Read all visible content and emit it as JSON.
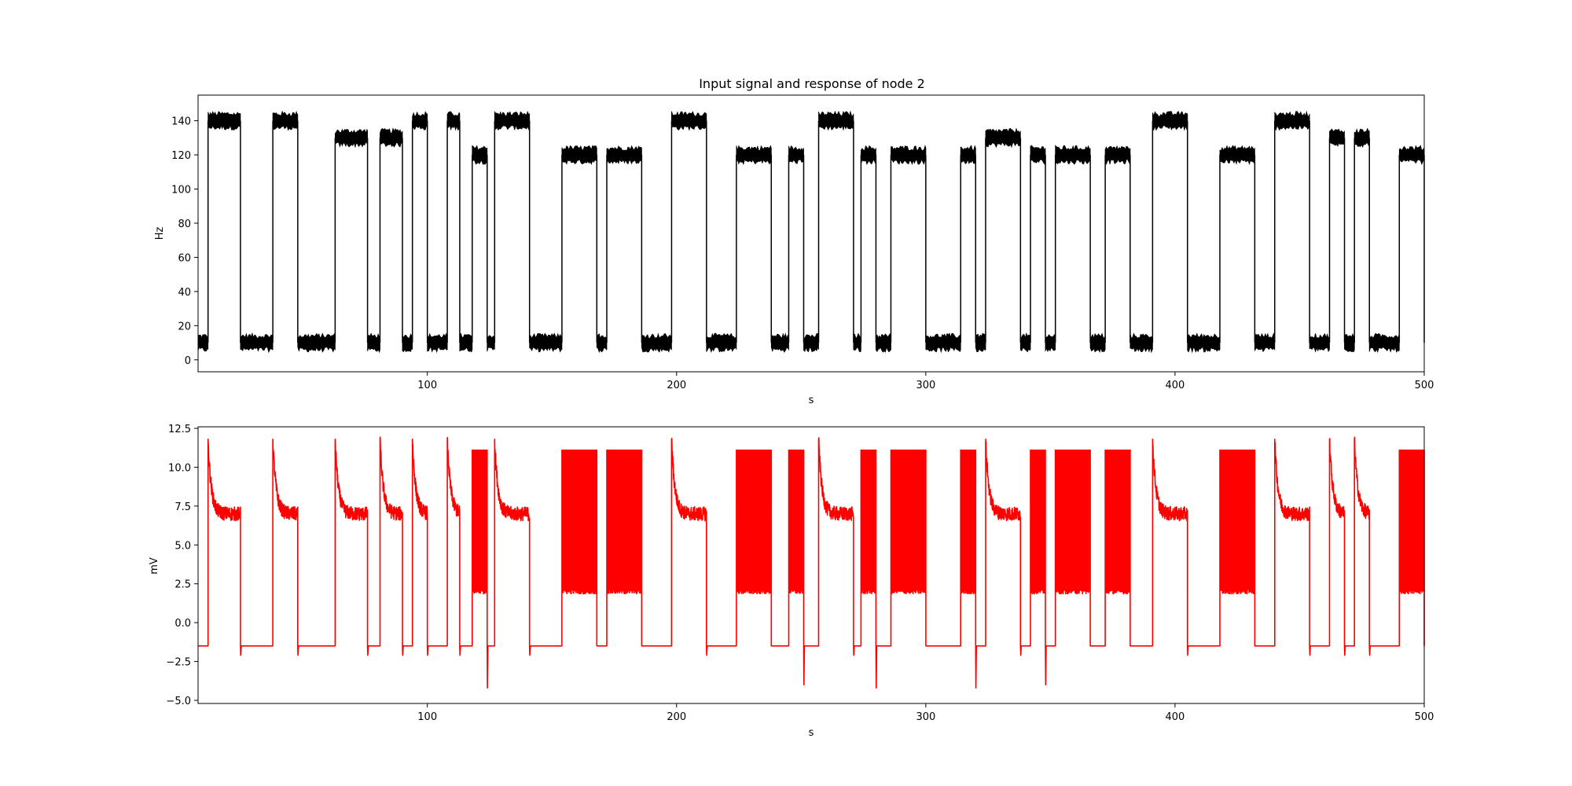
{
  "chart_data": [
    {
      "type": "line",
      "title": "Input signal and response of node 2",
      "xlabel": "s",
      "ylabel": "Hz",
      "xlim": [
        8,
        500
      ],
      "ylim": [
        -7,
        155
      ],
      "xticks": [
        100,
        200,
        300,
        400,
        500
      ],
      "yticks": [
        0,
        20,
        40,
        60,
        80,
        100,
        120,
        140
      ],
      "grid": false,
      "color": "#000000",
      "noise_amplitude": 4,
      "low_level": 10,
      "series": [
        {
          "high_segments": [
            {
              "start": 12,
              "end": 25,
              "level": 140
            },
            {
              "start": 38,
              "end": 48,
              "level": 140
            },
            {
              "start": 63,
              "end": 76,
              "level": 130
            },
            {
              "start": 81,
              "end": 90,
              "level": 130
            },
            {
              "start": 94,
              "end": 100,
              "level": 140
            },
            {
              "start": 108,
              "end": 113,
              "level": 140
            },
            {
              "start": 118,
              "end": 124,
              "level": 120
            },
            {
              "start": 127,
              "end": 141,
              "level": 140
            },
            {
              "start": 154,
              "end": 168,
              "level": 120
            },
            {
              "start": 172,
              "end": 186,
              "level": 120
            },
            {
              "start": 198,
              "end": 212,
              "level": 140
            },
            {
              "start": 224,
              "end": 238,
              "level": 120
            },
            {
              "start": 245,
              "end": 251,
              "level": 120
            },
            {
              "start": 257,
              "end": 271,
              "level": 140
            },
            {
              "start": 274,
              "end": 280,
              "level": 120
            },
            {
              "start": 286,
              "end": 300,
              "level": 120
            },
            {
              "start": 314,
              "end": 320,
              "level": 120
            },
            {
              "start": 324,
              "end": 338,
              "level": 130
            },
            {
              "start": 342,
              "end": 348,
              "level": 120
            },
            {
              "start": 352,
              "end": 366,
              "level": 120
            },
            {
              "start": 372,
              "end": 382,
              "level": 120
            },
            {
              "start": 391,
              "end": 405,
              "level": 140
            },
            {
              "start": 418,
              "end": 432,
              "level": 120
            },
            {
              "start": 440,
              "end": 454,
              "level": 140
            },
            {
              "start": 462,
              "end": 468,
              "level": 130
            },
            {
              "start": 472,
              "end": 478,
              "level": 130
            },
            {
              "start": 490,
              "end": 500,
              "level": 120
            }
          ]
        }
      ]
    },
    {
      "type": "line",
      "title": "",
      "xlabel": "s",
      "ylabel": "mV",
      "xlim": [
        8,
        500
      ],
      "ylim": [
        -5.2,
        12.6
      ],
      "xticks": [
        100,
        200,
        300,
        400,
        500
      ],
      "yticks": [
        -5.0,
        -2.5,
        0.0,
        2.5,
        5.0,
        7.5,
        10.0,
        12.5
      ],
      "ytick_labels": [
        "−5.0",
        "−2.5",
        "0.0",
        "2.5",
        "5.0",
        "7.5",
        "10.0",
        "12.5"
      ],
      "grid": false,
      "color": "#ff0000",
      "baseline": -1.5,
      "spike_peak": 11.8,
      "settle_level": 7.0,
      "burst_top": 11.1,
      "burst_bottom": 2.0,
      "series": [
        {
          "segments": [
            {
              "start": 12,
              "end": 25,
              "mode": "settle"
            },
            {
              "start": 38,
              "end": 48,
              "mode": "settle"
            },
            {
              "start": 63,
              "end": 76,
              "mode": "settle"
            },
            {
              "start": 81,
              "end": 90,
              "mode": "settle"
            },
            {
              "start": 94,
              "end": 100,
              "mode": "settle"
            },
            {
              "start": 108,
              "end": 113,
              "mode": "settle"
            },
            {
              "start": 118,
              "end": 124,
              "mode": "burst",
              "undershoot": -4.2
            },
            {
              "start": 127,
              "end": 141,
              "mode": "settle"
            },
            {
              "start": 154,
              "end": 168,
              "mode": "burst"
            },
            {
              "start": 172,
              "end": 186,
              "mode": "burst"
            },
            {
              "start": 198,
              "end": 212,
              "mode": "settle"
            },
            {
              "start": 224,
              "end": 238,
              "mode": "burst"
            },
            {
              "start": 245,
              "end": 251,
              "mode": "burst",
              "undershoot": -4.0
            },
            {
              "start": 257,
              "end": 271,
              "mode": "settle"
            },
            {
              "start": 274,
              "end": 280,
              "mode": "burst",
              "undershoot": -4.2
            },
            {
              "start": 286,
              "end": 300,
              "mode": "burst"
            },
            {
              "start": 314,
              "end": 320,
              "mode": "burst",
              "undershoot": -4.2
            },
            {
              "start": 324,
              "end": 338,
              "mode": "settle"
            },
            {
              "start": 342,
              "end": 348,
              "mode": "burst",
              "undershoot": -4.0
            },
            {
              "start": 352,
              "end": 366,
              "mode": "burst"
            },
            {
              "start": 372,
              "end": 382,
              "mode": "burst"
            },
            {
              "start": 391,
              "end": 405,
              "mode": "settle"
            },
            {
              "start": 418,
              "end": 432,
              "mode": "burst"
            },
            {
              "start": 440,
              "end": 454,
              "mode": "settle"
            },
            {
              "start": 462,
              "end": 468,
              "mode": "settle"
            },
            {
              "start": 472,
              "end": 478,
              "mode": "settle"
            },
            {
              "start": 490,
              "end": 500,
              "mode": "burst"
            }
          ]
        }
      ]
    }
  ]
}
